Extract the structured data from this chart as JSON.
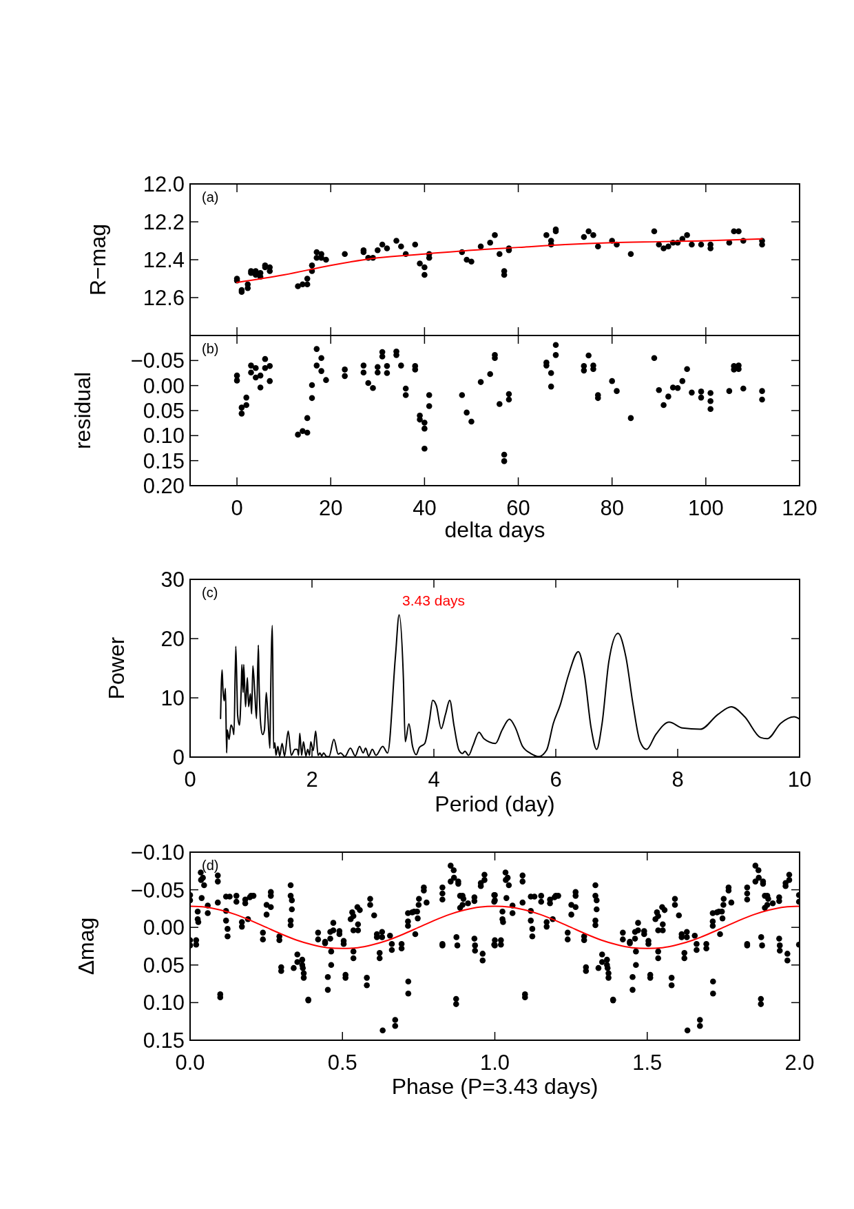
{
  "chart_data": [
    {
      "type": "scatter",
      "ylabel": "R−mag",
      "annotations": [
        "(a)"
      ],
      "xlim": [
        -10,
        120
      ],
      "xticks": [
        0,
        20,
        40,
        60,
        80,
        100,
        120
      ],
      "ylim": [
        12.8,
        12.0
      ],
      "yticks": [
        {
          "value": 12.0,
          "label": "12.0"
        },
        {
          "value": 12.2,
          "label": "12.2"
        },
        {
          "value": 12.4,
          "label": "12.4"
        },
        {
          "value": 12.6,
          "label": "12.6"
        }
      ],
      "tick_labels": "y",
      "series": [
        {
          "marker": "circle",
          "color": "#000000",
          "x": [
            0,
            0,
            1,
            1,
            2.3,
            2.3,
            3,
            3,
            4,
            4,
            5,
            5,
            6,
            6,
            7,
            7,
            13,
            14,
            15,
            15,
            16,
            16,
            17,
            17,
            18,
            18,
            19,
            23,
            27,
            27,
            28,
            29,
            30,
            31,
            32,
            34,
            35,
            36,
            38,
            39,
            40,
            40,
            41,
            41,
            48,
            49,
            50,
            52,
            54,
            55,
            56,
            57,
            57,
            58,
            58,
            66,
            67,
            67,
            68,
            68,
            74,
            75,
            76,
            77,
            80,
            81,
            84,
            89,
            90,
            91,
            92,
            93,
            94,
            95,
            96,
            97,
            99,
            101,
            101,
            105,
            106,
            107,
            108,
            112,
            112
          ],
          "values": [
            12.5,
            12.51,
            12.56,
            12.57,
            12.55,
            12.53,
            12.47,
            12.46,
            12.46,
            12.48,
            12.47,
            12.49,
            12.43,
            12.44,
            12.44,
            12.46,
            12.54,
            12.53,
            12.53,
            12.5,
            12.46,
            12.43,
            12.36,
            12.39,
            12.37,
            12.39,
            12.4,
            12.37,
            12.35,
            12.36,
            12.39,
            12.39,
            12.35,
            12.32,
            12.34,
            12.3,
            12.33,
            12.37,
            12.32,
            12.42,
            12.44,
            12.48,
            12.37,
            12.39,
            12.36,
            12.4,
            12.41,
            12.33,
            12.31,
            12.27,
            12.37,
            12.46,
            12.48,
            12.34,
            12.35,
            12.27,
            12.3,
            12.32,
            12.24,
            12.25,
            12.28,
            12.25,
            12.27,
            12.33,
            12.3,
            12.32,
            12.37,
            12.25,
            12.32,
            12.34,
            12.33,
            12.31,
            12.31,
            12.29,
            12.27,
            12.32,
            12.32,
            12.32,
            12.34,
            12.31,
            12.25,
            12.25,
            12.3,
            12.3,
            12.32
          ]
        },
        {
          "type": "line",
          "color": "#ff0000",
          "x": [
            0,
            10,
            20,
            30,
            40,
            50,
            60,
            70,
            80,
            90,
            100,
            112
          ],
          "values": [
            12.52,
            12.48,
            12.43,
            12.39,
            12.37,
            12.35,
            12.335,
            12.32,
            12.31,
            12.305,
            12.3,
            12.29
          ]
        }
      ]
    },
    {
      "type": "scatter",
      "xlabel": "delta days",
      "ylabel": "residual",
      "annotations": [
        "(b)"
      ],
      "xlim": [
        -10,
        120
      ],
      "xticks": [
        0,
        20,
        40,
        60,
        80,
        100,
        120
      ],
      "ylim": [
        0.2,
        -0.1
      ],
      "yticks": [
        {
          "value": -0.05,
          "label": "−0.05"
        },
        {
          "value": 0,
          "label": "0.00"
        },
        {
          "value": 0.05,
          "label": "0.05"
        },
        {
          "value": 0.1,
          "label": "0.10"
        },
        {
          "value": 0.15,
          "label": "0.15"
        },
        {
          "value": 0.2,
          "label": "0.20"
        }
      ],
      "series": [
        {
          "marker": "circle",
          "color": "#000000",
          "x": [
            0,
            0,
            1,
            1,
            2,
            2,
            3,
            3,
            4,
            4,
            5,
            5,
            6,
            6,
            7,
            7,
            13,
            14,
            15,
            15,
            16,
            16,
            17,
            17,
            18,
            18,
            19,
            23,
            23,
            27,
            27,
            28,
            29,
            30,
            30,
            31,
            31,
            32,
            32,
            34,
            34,
            35,
            36,
            36,
            38,
            38,
            39,
            39,
            40,
            40,
            40,
            41,
            41,
            48,
            49,
            50,
            52,
            54,
            55,
            55,
            56,
            57,
            57,
            58,
            58,
            66,
            66,
            67,
            67,
            68,
            68,
            74,
            74,
            75,
            76,
            76,
            77,
            77,
            80,
            81,
            84,
            89,
            90,
            91,
            92,
            93,
            94,
            95,
            96,
            97,
            99,
            99,
            101,
            101,
            101,
            105,
            106,
            106,
            107,
            107,
            108,
            112,
            112
          ],
          "values": [
            -0.02,
            -0.01,
            0.044,
            0.056,
            0.039,
            0.024,
            -0.04,
            -0.026,
            -0.035,
            -0.016,
            -0.02,
            0.004,
            -0.053,
            -0.035,
            -0.039,
            -0.009,
            0.098,
            0.091,
            0.094,
            0.065,
            0.025,
            -0.001,
            -0.073,
            -0.04,
            -0.055,
            -0.029,
            -0.011,
            -0.032,
            -0.019,
            -0.04,
            -0.026,
            -0.005,
            0.005,
            -0.037,
            -0.026,
            -0.067,
            -0.058,
            -0.039,
            -0.025,
            -0.068,
            -0.061,
            -0.04,
            0.006,
            0.019,
            -0.039,
            -0.032,
            0.06,
            0.068,
            0.074,
            0.086,
            0.126,
            0.019,
            0.041,
            0.019,
            0.054,
            0.072,
            -0.007,
            -0.023,
            -0.061,
            -0.055,
            0.037,
            0.138,
            0.151,
            0.017,
            0.028,
            -0.046,
            -0.04,
            -0.025,
            0.002,
            -0.081,
            -0.061,
            -0.039,
            -0.03,
            -0.06,
            -0.04,
            -0.033,
            0.019,
            0.025,
            -0.009,
            0.011,
            0.065,
            -0.055,
            0.009,
            0.039,
            0.022,
            0.004,
            0.005,
            -0.009,
            -0.033,
            0.014,
            0.012,
            0.024,
            0.015,
            0.031,
            0.047,
            0.011,
            -0.039,
            -0.032,
            -0.04,
            -0.033,
            0.006,
            0.011,
            0.028
          ]
        }
      ]
    },
    {
      "type": "line",
      "xlabel": "Period (day)",
      "ylabel": "Power",
      "annotations": [
        "(c)",
        {
          "text": "3.43 days",
          "x": 3.43,
          "y": 24
        }
      ],
      "xlim": [
        0,
        10
      ],
      "xticks": [
        0,
        2,
        4,
        6,
        8,
        10
      ],
      "ylim": [
        0,
        30
      ],
      "yticks": [
        0,
        10,
        20,
        30
      ],
      "series": [
        {
          "color": "#000000",
          "x": [
            0.5,
            0.525,
            0.54,
            0.56,
            0.58,
            0.6,
            0.61,
            0.64,
            0.67,
            0.7,
            0.72,
            0.75,
            0.77,
            0.78,
            0.81,
            0.84,
            0.85,
            0.87,
            0.88,
            0.91,
            0.94,
            0.96,
            0.99,
            1.01,
            1.03,
            1.06,
            1.09,
            1.12,
            1.13,
            1.16,
            1.19,
            1.22,
            1.25,
            1.28,
            1.31,
            1.32,
            1.35,
            1.37,
            1.39,
            1.41,
            1.44,
            1.47,
            1.51,
            1.55,
            1.61,
            1.66,
            1.72,
            1.76,
            1.78,
            1.8,
            1.83,
            1.86,
            1.9,
            1.93,
            1.96,
            1.98,
            2.02,
            2.06,
            2.1,
            2.13,
            2.16,
            2.19,
            2.24,
            2.28,
            2.36,
            2.43,
            2.47,
            2.54,
            2.63,
            2.71,
            2.78,
            2.84,
            2.88,
            2.93,
            2.99,
            3.05,
            3.16,
            3.24,
            3.37,
            3.43,
            3.5,
            3.53,
            3.59,
            3.65,
            3.71,
            3.76,
            3.85,
            3.93,
            3.98,
            4.04,
            4.12,
            4.19,
            4.26,
            4.33,
            4.41,
            4.47,
            4.51,
            4.57,
            4.64,
            4.74,
            4.82,
            5.01,
            5.12,
            5.24,
            5.34,
            5.45,
            5.59,
            5.72,
            5.85,
            5.96,
            6.07,
            6.21,
            6.37,
            6.47,
            6.58,
            6.67,
            6.76,
            6.87,
            7.02,
            7.15,
            7.27,
            7.38,
            7.49,
            7.64,
            7.86,
            8.08,
            8.37,
            8.66,
            8.88,
            9.1,
            9.36,
            9.47,
            9.69,
            9.91,
            10
          ],
          "values": [
            6.5,
            14.7,
            11.3,
            9.5,
            11.6,
            0.7,
            4.6,
            3.0,
            5.4,
            4.8,
            3.8,
            18.7,
            11.1,
            7.1,
            5.4,
            12.0,
            15.6,
            10.9,
            15.6,
            8.5,
            13.4,
            8.5,
            10.7,
            7.3,
            15.4,
            11.1,
            6.5,
            18.9,
            13.4,
            5.4,
            3.8,
            4.6,
            10.9,
            6.2,
            1.5,
            9.3,
            22.2,
            1.5,
            2.4,
            0.3,
            1.8,
            0.2,
            2.3,
            0.2,
            4.4,
            0.3,
            1.3,
            1.3,
            0.3,
            4.0,
            0.3,
            2.6,
            0.2,
            1.3,
            0.3,
            2.6,
            1.1,
            4.4,
            0.3,
            0.7,
            0.2,
            0.7,
            0.1,
            0.1,
            3.0,
            0.5,
            0.7,
            0.1,
            1.5,
            0.2,
            1.8,
            0.7,
            1.5,
            0.2,
            1.3,
            0.3,
            1.8,
            0.7,
            17.1,
            24.0,
            13.2,
            2.6,
            5.6,
            1.8,
            0.4,
            1.6,
            2.3,
            6.4,
            9.6,
            8.7,
            4.8,
            7.2,
            9.6,
            5.3,
            1.2,
            0.6,
            1.0,
            0.3,
            1.9,
            4.2,
            3.1,
            2.3,
            4.6,
            6.4,
            4.9,
            1.9,
            0.6,
            0.1,
            1.2,
            5.7,
            8.7,
            13.9,
            17.8,
            13.9,
            4.9,
            1.3,
            5.7,
            16.1,
            20.9,
            16.9,
            8.7,
            2.7,
            1.3,
            3.8,
            5.9,
            4.9,
            4.7,
            7.2,
            8.5,
            6.8,
            3.3,
            3.1,
            5.7,
            6.8,
            6.4
          ]
        }
      ]
    },
    {
      "type": "scatter",
      "xlabel": "Phase (P=3.43 days)",
      "ylabel": "Δmag",
      "annotations": [
        "(d)"
      ],
      "xlim": [
        0,
        2
      ],
      "xticks": [
        {
          "value": 0,
          "label": "0.0"
        },
        {
          "value": 0.5,
          "label": "0.5"
        },
        {
          "value": 1,
          "label": "1.0"
        },
        {
          "value": 1.5,
          "label": "1.5"
        },
        {
          "value": 2,
          "label": "2.0"
        }
      ],
      "ylim": [
        0.15,
        -0.1
      ],
      "yticks": [
        {
          "value": -0.1,
          "label": "−0.10"
        },
        {
          "value": -0.05,
          "label": "−0.05"
        },
        {
          "value": 0,
          "label": "0.00"
        },
        {
          "value": 0.05,
          "label": "0.05"
        },
        {
          "value": 0.1,
          "label": "0.10"
        },
        {
          "value": 0.15,
          "label": "0.15"
        }
      ],
      "series": [
        {
          "marker": "circle",
          "color": "#000000",
          "x": [
            0,
            0,
            0,
            0,
            0.02,
            0.02,
            0.025,
            0.025,
            0.027,
            0.035,
            0.036,
            0.042,
            0.046,
            0.038,
            0.058,
            0.058,
            0.091,
            0.091,
            0.091,
            0.099,
            0.099,
            0.118,
            0.118,
            0.118,
            0.123,
            0.123,
            0.13,
            0.152,
            0.152,
            0.17,
            0.17,
            0.181,
            0.181,
            0.19,
            0.196,
            0.2,
            0.208,
            0.239,
            0.239,
            0.251,
            0.251,
            0.265,
            0.265,
            0.265,
            0.293,
            0.293,
            0.299,
            0.299,
            0.33,
            0.33,
            0.334,
            0.334,
            0.33,
            0.33,
            0.34,
            0.352,
            0.352,
            0.368,
            0.368,
            0.37,
            0.373,
            0.373,
            0.388,
            0.388,
            0.42,
            0.42,
            0.443,
            0.443,
            0.452,
            0.452,
            0.463,
            0.463,
            0.46,
            0.46,
            0.47,
            0.47,
            0.49,
            0.49,
            0.504,
            0.504,
            0.51,
            0.51,
            0.527,
            0.532,
            0.536,
            0.536,
            0.536,
            0.536,
            0.549,
            0.551,
            0.551,
            0.557,
            0.58,
            0.58,
            0.591,
            0.591,
            0.604,
            0.613,
            0.613,
            0.622,
            0.622,
            0.63,
            0.63,
            0.632,
            0.656,
            0.662,
            0.662,
            0.673,
            0.673,
            0.694,
            0.694,
            0.715,
            0.715,
            0.715,
            0.716,
            0.716,
            0.729,
            0.735,
            0.739,
            0.745,
            0.747,
            0.75,
            0.751,
            0.767,
            0.767,
            0.776,
            0.828,
            0.828,
            0.828,
            0.828,
            0.828,
            0.855,
            0.855,
            0.865,
            0.866,
            0.874,
            0.877,
            0.873,
            0.873,
            0.88,
            0.88,
            0.886,
            0.886,
            0.894,
            0.894,
            0.897,
            0.912,
            0.933,
            0.933,
            0.933,
            0.935,
            0.935,
            0.96,
            0.96,
            0.954,
            0.954,
            0.966,
            0.966,
            0.998,
            0.998,
            0.998,
            1,
            1,
            1,
            1,
            1.02,
            1.02,
            1.025,
            1.025,
            1.027,
            1.035,
            1.036,
            1.042,
            1.046,
            1.038,
            1.058,
            1.058,
            1.091,
            1.091,
            1.091,
            1.099,
            1.099,
            1.118,
            1.118,
            1.118,
            1.123,
            1.123,
            1.13,
            1.152,
            1.152,
            1.17,
            1.17,
            1.181,
            1.181,
            1.19,
            1.196,
            1.2,
            1.208,
            1.239,
            1.239,
            1.251,
            1.251,
            1.265,
            1.265,
            1.265,
            1.293,
            1.293,
            1.299,
            1.299,
            1.33,
            1.33,
            1.334,
            1.334,
            1.33,
            1.33,
            1.34,
            1.352,
            1.352,
            1.368,
            1.368,
            1.37,
            1.373,
            1.373,
            1.388,
            1.388,
            1.42,
            1.42,
            1.443,
            1.443,
            1.452,
            1.452,
            1.463,
            1.463,
            1.46,
            1.46,
            1.47,
            1.47,
            1.49,
            1.49,
            1.504,
            1.504,
            1.51,
            1.51,
            1.527,
            1.532,
            1.536,
            1.536,
            1.536,
            1.536,
            1.549,
            1.551,
            1.551,
            1.557,
            1.58,
            1.58,
            1.591,
            1.591,
            1.604,
            1.613,
            1.613,
            1.622,
            1.622,
            1.63,
            1.63,
            1.632,
            1.656,
            1.662,
            1.662,
            1.673,
            1.673,
            1.694,
            1.694,
            1.715,
            1.715,
            1.715,
            1.716,
            1.716,
            1.729,
            1.735,
            1.739,
            1.745,
            1.747,
            1.75,
            1.751,
            1.767,
            1.767,
            1.776,
            1.828,
            1.828,
            1.828,
            1.828,
            1.828,
            1.855,
            1.855,
            1.865,
            1.866,
            1.874,
            1.877,
            1.873,
            1.873,
            1.88,
            1.88,
            1.886,
            1.886,
            1.894,
            1.894,
            1.897,
            1.912,
            1.933,
            1.933,
            1.933,
            1.935,
            1.935,
            1.96,
            1.96,
            1.954,
            1.954,
            1.966,
            1.966,
            1.998,
            1.998,
            1.998
          ],
          "values": [
            -0.043,
            -0.036,
            0.017,
            0.024,
            0.017,
            0.023,
            -0.021,
            -0.011,
            -0.007,
            -0.073,
            -0.063,
            -0.066,
            -0.056,
            -0.039,
            -0.029,
            -0.019,
            -0.069,
            -0.061,
            -0.033,
            0.089,
            0.093,
            -0.041,
            -0.022,
            -0.009,
            0.002,
            0.012,
            -0.041,
            -0.042,
            -0.034,
            -0.007,
            -0.001,
            -0.037,
            -0.032,
            -0.011,
            -0.04,
            -0.042,
            -0.042,
            0.007,
            0.016,
            -0.017,
            -0.03,
            -0.047,
            -0.042,
            -0.027,
            0.012,
            0.017,
            0.053,
            0.058,
            -0.056,
            -0.042,
            -0.036,
            -0.024,
            -0.009,
            -0.003,
            0.054,
            0.036,
            0.046,
            0.043,
            0.05,
            0.054,
            0.061,
            0.067,
            0.096,
            0.097,
            0.007,
            0.016,
            0.019,
            0.021,
            0.083,
            0.066,
            0.05,
            0.032,
            0.006,
            0.015,
            -0.006,
            0.004,
            0.005,
            0.009,
            0.018,
            0.022,
            0.063,
            0.067,
            -0.011,
            -0.02,
            -0.015,
            0.004,
            0.032,
            0.041,
            -0.027,
            -0.004,
            0.004,
            -0.023,
            0.067,
            0.077,
            -0.038,
            -0.03,
            -0.016,
            0.009,
            0.013,
            0.034,
            0.041,
            0.006,
            0.013,
            0.137,
            0.011,
            0.022,
            0.03,
            0.123,
            0.131,
            0.022,
            0.028,
            -0.019,
            -0.008,
            -0.002,
            0.072,
            0.088,
            -0.02,
            -0.021,
            0.009,
            -0.021,
            -0.012,
            -0.03,
            -0.038,
            -0.053,
            -0.049,
            -0.033,
            -0.053,
            -0.045,
            -0.037,
            0.022,
            0.024,
            -0.082,
            -0.061,
            -0.076,
            -0.066,
            0.013,
            0.024,
            0.095,
            0.102,
            -0.061,
            -0.058,
            -0.042,
            -0.026,
            -0.042,
            -0.03,
            -0.038,
            -0.032,
            -0.04,
            -0.035,
            0.015,
            0.024,
            0.031,
            0.035,
            0.044,
            -0.059,
            -0.055,
            -0.07,
            -0.063,
            -0.043,
            -0.034,
            0.023,
            -0.043,
            -0.036,
            0.017,
            0.024,
            0.017,
            0.023,
            -0.021,
            -0.011,
            -0.007,
            -0.073,
            -0.063,
            -0.066,
            -0.056,
            -0.039,
            -0.029,
            -0.019,
            -0.069,
            -0.061,
            -0.033,
            0.089,
            0.093,
            -0.041,
            -0.022,
            -0.009,
            0.002,
            0.012,
            -0.041,
            -0.042,
            -0.034,
            -0.007,
            -0.001,
            -0.037,
            -0.032,
            -0.011,
            -0.04,
            -0.042,
            -0.042,
            0.007,
            0.016,
            -0.017,
            -0.03,
            -0.047,
            -0.042,
            -0.027,
            0.012,
            0.017,
            0.053,
            0.058,
            -0.056,
            -0.042,
            -0.036,
            -0.024,
            -0.009,
            -0.003,
            0.054,
            0.036,
            0.046,
            0.043,
            0.05,
            0.054,
            0.061,
            0.067,
            0.096,
            0.097,
            0.007,
            0.016,
            0.019,
            0.021,
            0.083,
            0.066,
            0.05,
            0.032,
            0.006,
            0.015,
            -0.006,
            0.004,
            0.005,
            0.009,
            0.018,
            0.022,
            0.063,
            0.067,
            -0.011,
            -0.02,
            -0.015,
            0.004,
            0.032,
            0.041,
            -0.027,
            -0.004,
            0.004,
            -0.023,
            0.067,
            0.077,
            -0.038,
            -0.03,
            -0.016,
            0.009,
            0.013,
            0.034,
            0.041,
            0.006,
            0.013,
            0.137,
            0.011,
            0.022,
            0.03,
            0.123,
            0.131,
            0.022,
            0.028,
            -0.019,
            -0.008,
            -0.002,
            0.072,
            0.088,
            -0.02,
            -0.021,
            0.009,
            -0.021,
            -0.012,
            -0.03,
            -0.038,
            -0.053,
            -0.049,
            -0.033,
            -0.053,
            -0.045,
            -0.037,
            0.022,
            0.024,
            -0.082,
            -0.061,
            -0.076,
            -0.066,
            0.013,
            0.024,
            0.095,
            0.102,
            -0.061,
            -0.058,
            -0.042,
            -0.026,
            -0.042,
            -0.03,
            -0.038,
            -0.032,
            -0.04,
            -0.035,
            0.015,
            0.024,
            0.031,
            0.035,
            0.044,
            -0.059,
            -0.055,
            -0.07,
            -0.063,
            -0.043,
            -0.034,
            0.023
          ]
        },
        {
          "type": "line",
          "color": "#ff0000",
          "x": [
            0,
            0.05,
            0.1,
            0.15,
            0.2,
            0.25,
            0.3,
            0.35,
            0.4,
            0.45,
            0.5,
            0.55,
            0.6,
            0.65,
            0.7,
            0.75,
            0.8,
            0.85,
            0.9,
            0.95,
            1,
            1.05,
            1.1,
            1.15,
            1.2,
            1.25,
            1.3,
            1.35,
            1.4,
            1.45,
            1.5,
            1.55,
            1.6,
            1.65,
            1.7,
            1.75,
            1.8,
            1.85,
            1.9,
            1.95,
            2
          ],
          "values": [
            -0.028,
            -0.027,
            -0.023,
            -0.017,
            -0.009,
            0,
            0.009,
            0.017,
            0.023,
            0.027,
            0.028,
            0.027,
            0.023,
            0.017,
            0.009,
            0,
            -0.009,
            -0.017,
            -0.023,
            -0.027,
            -0.028,
            -0.027,
            -0.023,
            -0.017,
            -0.009,
            0,
            0.009,
            0.017,
            0.023,
            0.027,
            0.028,
            0.027,
            0.023,
            0.017,
            0.009,
            0,
            -0.009,
            -0.017,
            -0.023,
            -0.027,
            -0.028
          ]
        }
      ]
    }
  ]
}
